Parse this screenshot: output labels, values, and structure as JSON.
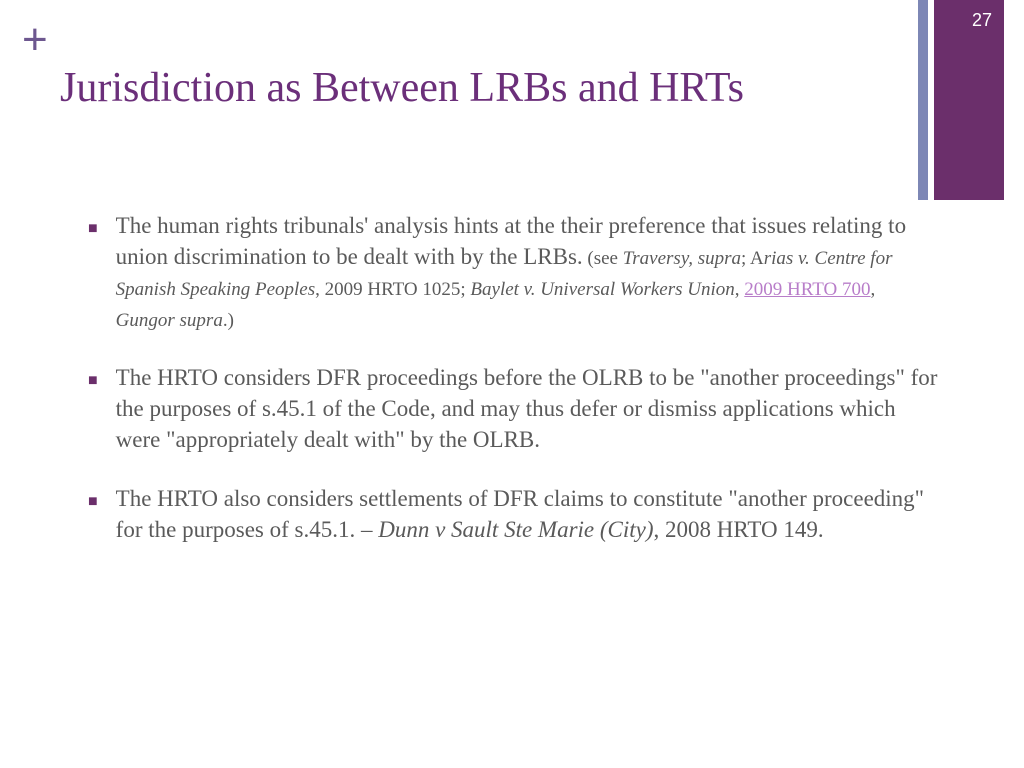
{
  "slide": {
    "number": "27",
    "title": "Jurisdiction as Between LRBs and HRTs",
    "plus_symbol": "+"
  },
  "colors": {
    "title": "#6b2f7a",
    "accent_thick": "#6b2f6b",
    "accent_thin": "#7d87b5",
    "body_text": "#5a5a5a",
    "link": "#b87dc9",
    "background": "#ffffff"
  },
  "bullets": [
    {
      "main": "The human rights tribunals' analysis hints at the their preference that issues relating to union discrimination to be dealt with by the LRBs.",
      "citation_prefix": " (see ",
      "cite1": "Traversy, supra",
      "sep1": "; A",
      "cite2": "rias v. Centre for Spanish Speaking Peoples",
      "sep2": ", 2009 HRTO 1025; ",
      "cite3": "Baylet v. Universal Workers Union",
      "sep3": ", ",
      "link_text": "2009 HRTO 700",
      "sep4": ", ",
      "cite4": "Gungor supra",
      "citation_suffix": ".)"
    },
    {
      "main": "The HRTO considers DFR proceedings before the OLRB to be \"another proceedings\" for the purposes of s.45.1 of the Code, and may thus defer or dismiss applications which were \"appropriately dealt with\" by the OLRB."
    },
    {
      "main": "The HRTO also considers settlements of DFR claims to constitute \"another proceeding\" for the purposes of s.45.1. – ",
      "cite_italic": "Dunn v Sault Ste Marie (City)",
      "tail": ", 2008 HRTO 149."
    }
  ]
}
